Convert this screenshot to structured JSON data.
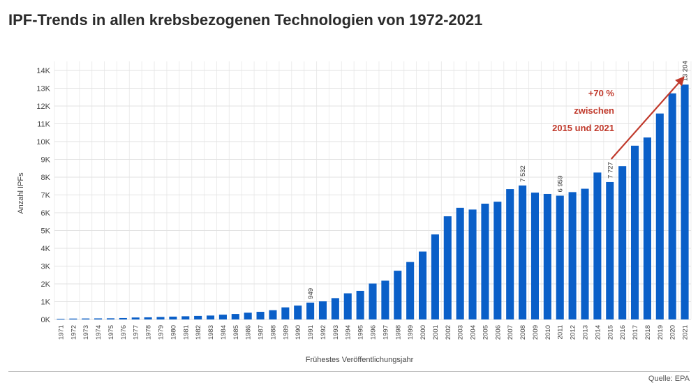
{
  "title": "IPF-Trends in allen krebsbezogenen Technologien von 1972-2021",
  "source": "Quelle: EPA",
  "chart_data": {
    "type": "bar",
    "title": "IPF-Trends in allen krebsbezogenen Technologien von 1972-2021",
    "xlabel": "Frühestes Veröffentlichungsjahr",
    "ylabel": "Anzahl IPFs",
    "ylim": [
      0,
      14000
    ],
    "yticks": [
      0,
      1000,
      2000,
      3000,
      4000,
      5000,
      6000,
      7000,
      8000,
      9000,
      10000,
      11000,
      12000,
      13000,
      14000
    ],
    "ytick_labels": [
      "0K",
      "1K",
      "2K",
      "3K",
      "4K",
      "5K",
      "6K",
      "7K",
      "8K",
      "9K",
      "10K",
      "11K",
      "12K",
      "13K",
      "14K"
    ],
    "grid": true,
    "bar_color": "#0a5fc8",
    "categories": [
      "1971",
      "1972",
      "1973",
      "1974",
      "1975",
      "1976",
      "1977",
      "1978",
      "1979",
      "1980",
      "1981",
      "1982",
      "1983",
      "1984",
      "1985",
      "1986",
      "1987",
      "1988",
      "1989",
      "1990",
      "1991",
      "1992",
      "1993",
      "1994",
      "1995",
      "1996",
      "1997",
      "1998",
      "1999",
      "2000",
      "2001",
      "2002",
      "2003",
      "2004",
      "2005",
      "2006",
      "2007",
      "2008",
      "2009",
      "2010",
      "2011",
      "2012",
      "2013",
      "2014",
      "2015",
      "2016",
      "2017",
      "2018",
      "2019",
      "2020",
      "2021"
    ],
    "values": [
      40,
      50,
      55,
      60,
      65,
      80,
      110,
      120,
      140,
      160,
      180,
      200,
      220,
      270,
      310,
      380,
      430,
      520,
      680,
      780,
      949,
      1020,
      1200,
      1470,
      1610,
      2020,
      2180,
      2740,
      3230,
      3820,
      4780,
      5800,
      6280,
      6180,
      6510,
      6620,
      7330,
      7532,
      7130,
      7060,
      6959,
      7160,
      7350,
      8260,
      7727,
      8620,
      9770,
      10230,
      11580,
      12710,
      13204
    ],
    "data_labels": [
      {
        "category": "1991",
        "text": "949"
      },
      {
        "category": "2008",
        "text": "7 532"
      },
      {
        "category": "2011",
        "text": "6 959"
      },
      {
        "category": "2015",
        "text": "7 727"
      },
      {
        "category": "2021",
        "text": "13 204"
      }
    ],
    "annotation": {
      "lines": [
        "+70 %",
        "zwischen",
        "2015 und 2021"
      ],
      "color": "#c0392b",
      "from_category": "2015",
      "to_category": "2021"
    }
  }
}
